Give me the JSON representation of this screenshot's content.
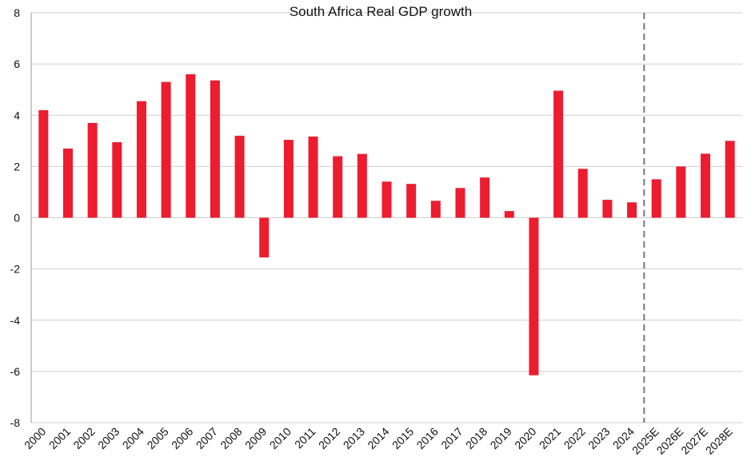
{
  "chart_data": {
    "type": "bar",
    "title": "South Africa Real GDP growth",
    "xlabel": "",
    "ylabel": "",
    "ylim": [
      -8,
      8
    ],
    "yticks": [
      -8,
      -6,
      -4,
      -2,
      0,
      2,
      4,
      6,
      8
    ],
    "grid": true,
    "legend": "none",
    "categories": [
      "2000",
      "2001",
      "2002",
      "2003",
      "2004",
      "2005",
      "2006",
      "2007",
      "2008",
      "2009",
      "2010",
      "2011",
      "2012",
      "2013",
      "2014",
      "2015",
      "2016",
      "2017",
      "2018",
      "2019",
      "2020",
      "2021",
      "2022",
      "2023",
      "2024",
      "2025E",
      "2026E",
      "2027E",
      "2028E"
    ],
    "values": [
      4.2,
      2.7,
      3.7,
      2.95,
      4.55,
      5.3,
      5.6,
      5.36,
      3.2,
      -1.55,
      3.04,
      3.17,
      2.4,
      2.49,
      1.41,
      1.32,
      0.66,
      1.16,
      1.57,
      0.26,
      -6.15,
      4.96,
      1.91,
      0.7,
      0.6,
      1.5,
      2.0,
      2.5,
      3.0
    ],
    "bar_color": "#ed1c2e",
    "forecast_divider_after": "2024"
  }
}
